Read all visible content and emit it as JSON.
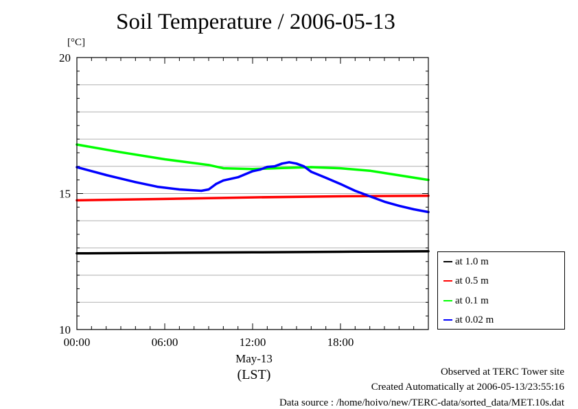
{
  "chart_data": {
    "type": "line",
    "title": "Soil Temperature / 2006-05-13",
    "ylabel": "[°C]",
    "ylim": [
      10,
      20
    ],
    "yticks": [
      "20",
      "15",
      "10"
    ],
    "xlim": [
      0,
      24
    ],
    "xticks": [
      "00:00",
      "06:00",
      "12:00",
      "18:00"
    ],
    "xsub1": "May-13",
    "xsub2": "(LST)",
    "series": [
      {
        "name": "at 1.0 m",
        "color": "#000000",
        "x": [
          0,
          6,
          12,
          18,
          24
        ],
        "y": [
          12.8,
          12.82,
          12.84,
          12.86,
          12.88
        ]
      },
      {
        "name": "at 0.5 m",
        "color": "#ff0000",
        "x": [
          0,
          6,
          12,
          18,
          24
        ],
        "y": [
          14.75,
          14.8,
          14.86,
          14.9,
          14.92
        ]
      },
      {
        "name": "at 0.1 m",
        "color": "#00ff00",
        "x": [
          0,
          3,
          6,
          9,
          10,
          12,
          14,
          16,
          18,
          20,
          22,
          24
        ],
        "y": [
          16.8,
          16.52,
          16.26,
          16.05,
          15.93,
          15.9,
          15.94,
          15.97,
          15.93,
          15.84,
          15.67,
          15.5
        ]
      },
      {
        "name": "at 0.02 m",
        "color": "#0000ff",
        "x": [
          0,
          2,
          4,
          5.5,
          7,
          8.5,
          9,
          9.5,
          10,
          11,
          12,
          12.5,
          13,
          13.5,
          14,
          14.5,
          15,
          15.5,
          16,
          17,
          18,
          19,
          20,
          21,
          22,
          23,
          24
        ],
        "y": [
          15.97,
          15.68,
          15.42,
          15.25,
          15.15,
          15.1,
          15.15,
          15.35,
          15.48,
          15.6,
          15.82,
          15.88,
          15.98,
          16.0,
          16.1,
          16.15,
          16.1,
          16.0,
          15.8,
          15.58,
          15.35,
          15.1,
          14.9,
          14.7,
          14.55,
          14.42,
          14.32
        ]
      }
    ]
  },
  "footer": {
    "observed": "Observed at TERC Tower site",
    "created": "Created Automatically at 2006-05-13/23:55:16",
    "source": "Data source : /home/hoivo/new/TERC-data/sorted_data/MET.10s.dat"
  }
}
